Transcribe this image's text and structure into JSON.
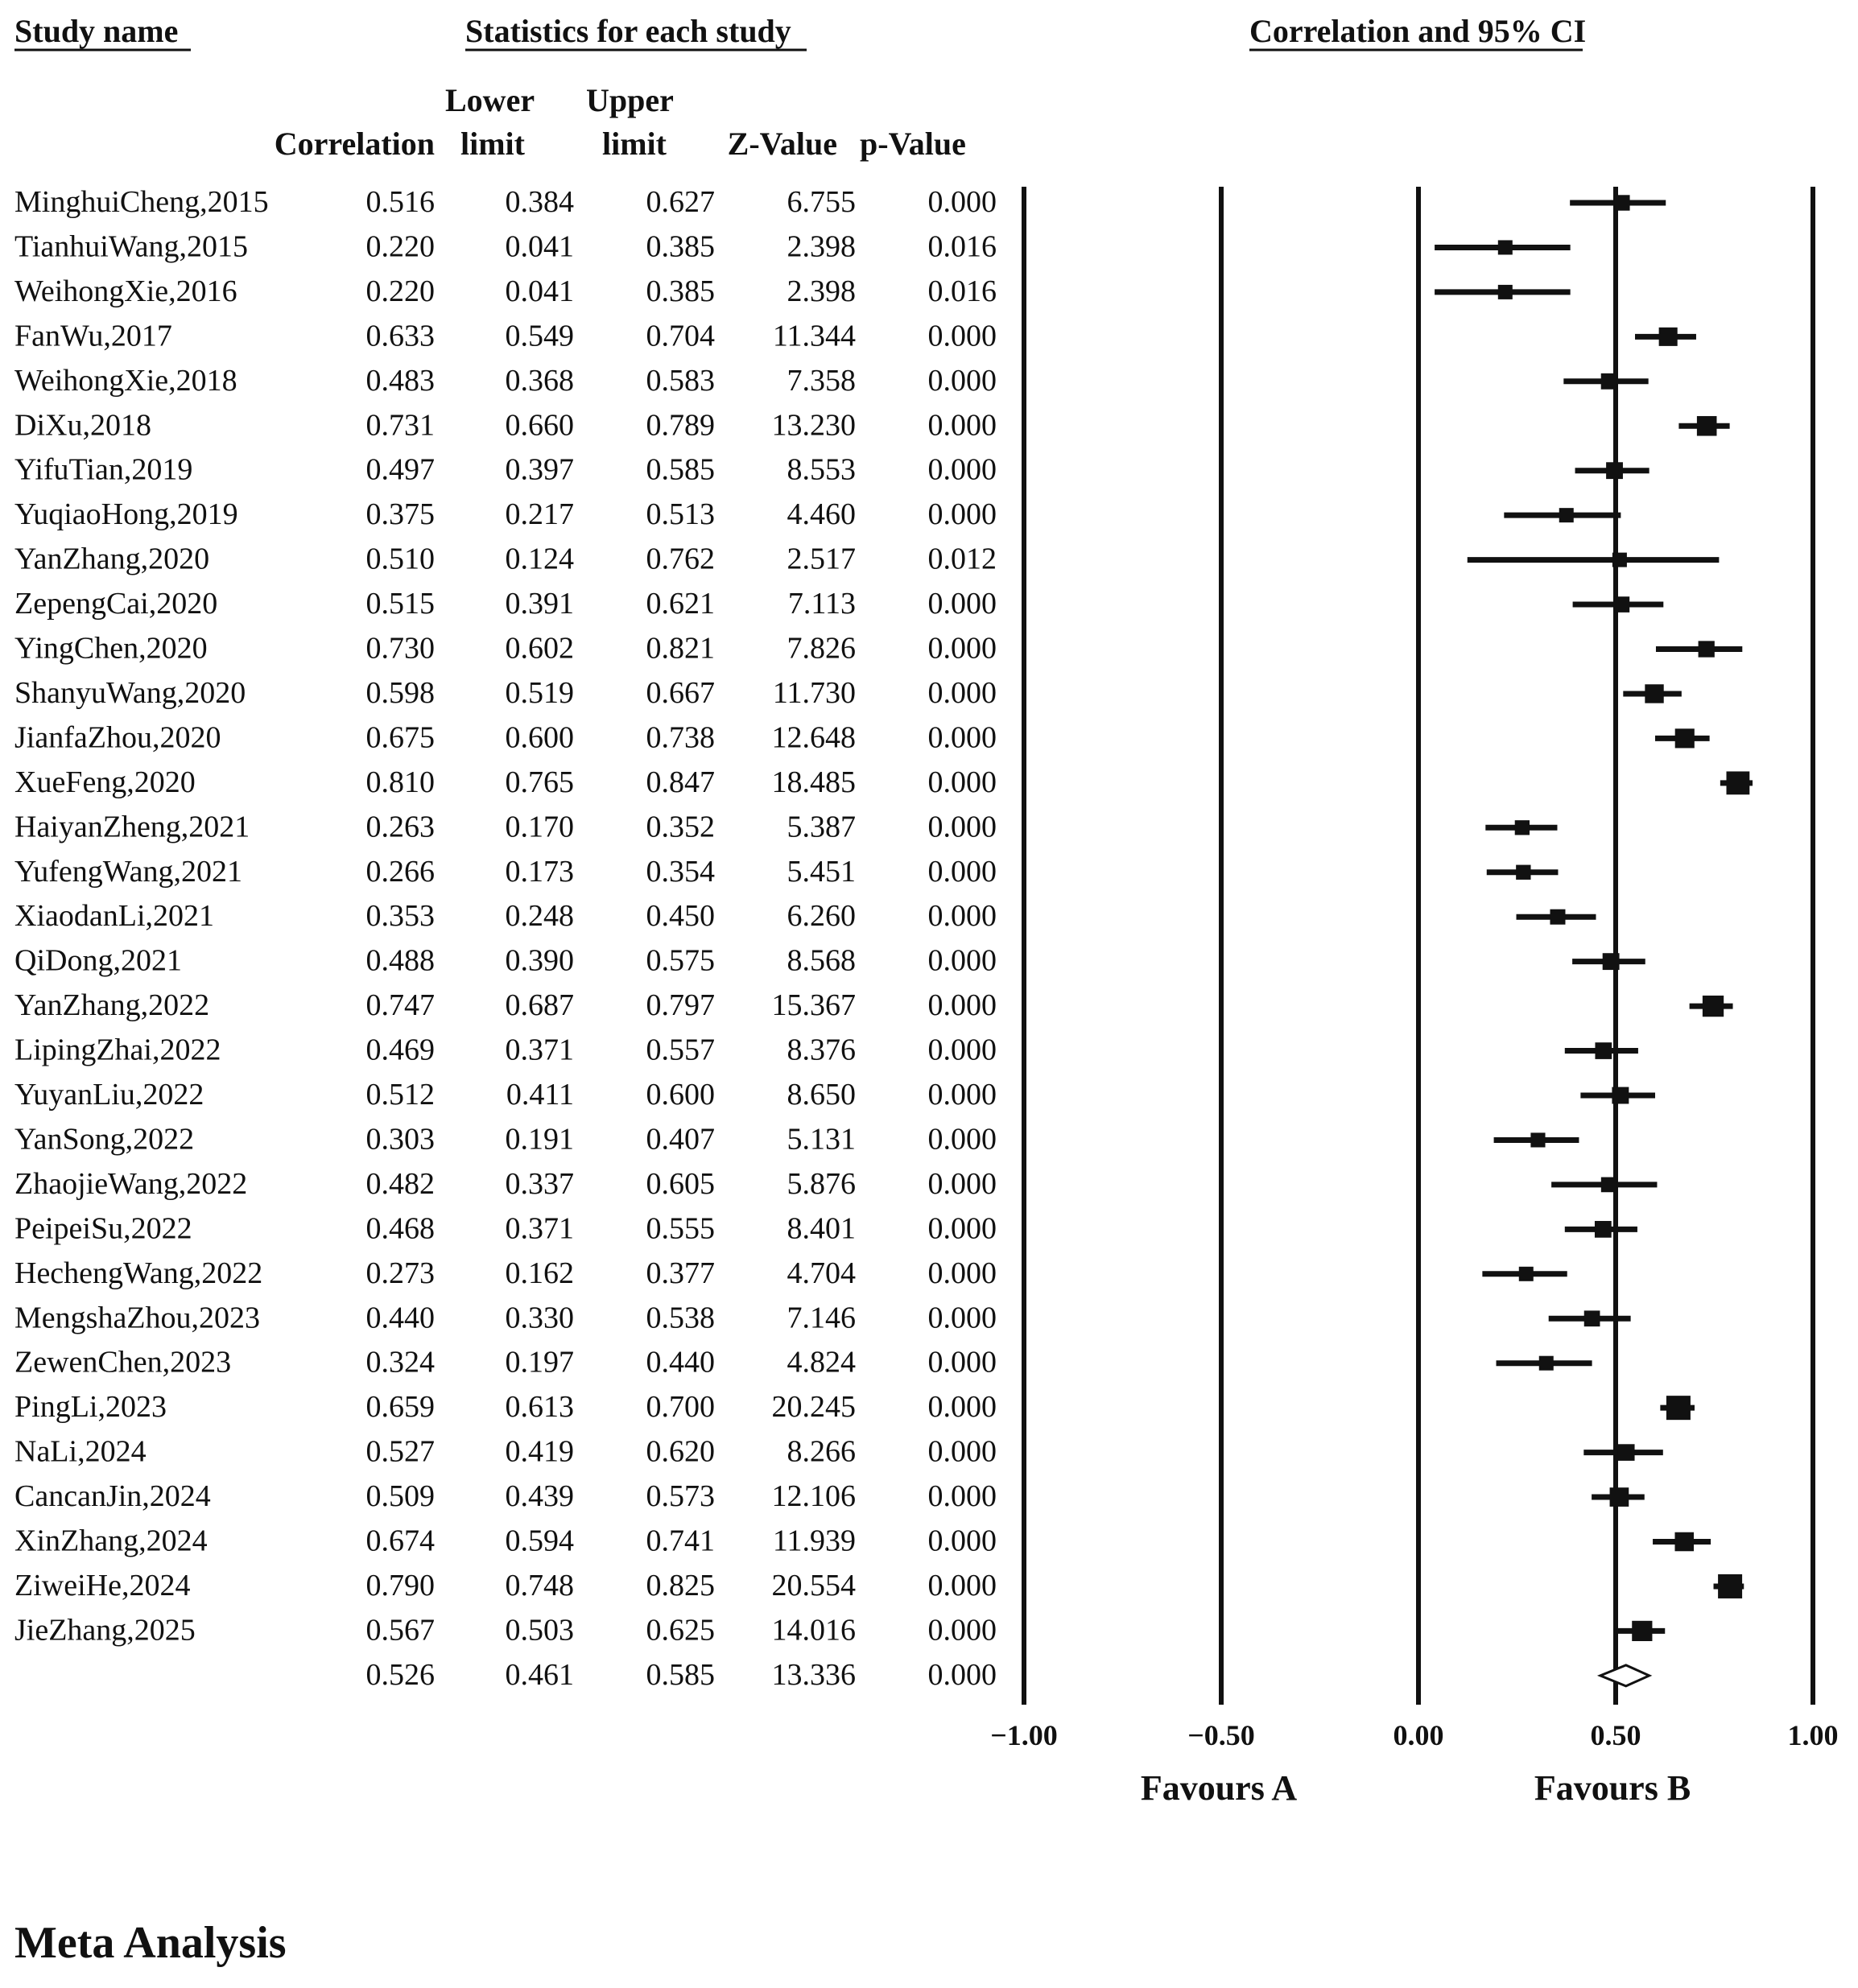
{
  "headers": {
    "study_name": "Study name",
    "statistics": "Statistics for each study",
    "ci": "Correlation and 95% CI",
    "correlation": "Correlation",
    "lower_1": "Lower",
    "lower_2": "limit",
    "upper_1": "Upper",
    "upper_2": "limit",
    "z": "Z-Value",
    "p": "p-Value"
  },
  "footer_title": "Meta Analysis",
  "chart_data": {
    "type": "forest",
    "xlim": [
      -1.0,
      1.0
    ],
    "x_ticks": [
      "-1.00",
      "-0.50",
      "0.00",
      "0.50",
      "1.00"
    ],
    "x_tick_values": [
      -1.0,
      -0.5,
      0.0,
      0.5,
      1.0
    ],
    "favours_left": "Favours A",
    "favours_right": "Favours B",
    "studies": [
      {
        "name": "MinghuiCheng,2015",
        "r": "0.516",
        "lower": "0.384",
        "upper": "0.627",
        "z": "6.755",
        "p": "0.000"
      },
      {
        "name": "TianhuiWang,2015",
        "r": "0.220",
        "lower": "0.041",
        "upper": "0.385",
        "z": "2.398",
        "p": "0.016"
      },
      {
        "name": "WeihongXie,2016",
        "r": "0.220",
        "lower": "0.041",
        "upper": "0.385",
        "z": "2.398",
        "p": "0.016"
      },
      {
        "name": "FanWu,2017",
        "r": "0.633",
        "lower": "0.549",
        "upper": "0.704",
        "z": "11.344",
        "p": "0.000"
      },
      {
        "name": "WeihongXie,2018",
        "r": "0.483",
        "lower": "0.368",
        "upper": "0.583",
        "z": "7.358",
        "p": "0.000"
      },
      {
        "name": "DiXu,2018",
        "r": "0.731",
        "lower": "0.660",
        "upper": "0.789",
        "z": "13.230",
        "p": "0.000"
      },
      {
        "name": "YifuTian,2019",
        "r": "0.497",
        "lower": "0.397",
        "upper": "0.585",
        "z": "8.553",
        "p": "0.000"
      },
      {
        "name": "YuqiaoHong,2019",
        "r": "0.375",
        "lower": "0.217",
        "upper": "0.513",
        "z": "4.460",
        "p": "0.000"
      },
      {
        "name": "YanZhang,2020",
        "r": "0.510",
        "lower": "0.124",
        "upper": "0.762",
        "z": "2.517",
        "p": "0.012"
      },
      {
        "name": "ZepengCai,2020",
        "r": "0.515",
        "lower": "0.391",
        "upper": "0.621",
        "z": "7.113",
        "p": "0.000"
      },
      {
        "name": "YingChen,2020",
        "r": "0.730",
        "lower": "0.602",
        "upper": "0.821",
        "z": "7.826",
        "p": "0.000"
      },
      {
        "name": "ShanyuWang,2020",
        "r": "0.598",
        "lower": "0.519",
        "upper": "0.667",
        "z": "11.730",
        "p": "0.000"
      },
      {
        "name": "JianfaZhou,2020",
        "r": "0.675",
        "lower": "0.600",
        "upper": "0.738",
        "z": "12.648",
        "p": "0.000"
      },
      {
        "name": "XueFeng,2020",
        "r": "0.810",
        "lower": "0.765",
        "upper": "0.847",
        "z": "18.485",
        "p": "0.000"
      },
      {
        "name": "HaiyanZheng,2021",
        "r": "0.263",
        "lower": "0.170",
        "upper": "0.352",
        "z": "5.387",
        "p": "0.000"
      },
      {
        "name": "YufengWang,2021",
        "r": "0.266",
        "lower": "0.173",
        "upper": "0.354",
        "z": "5.451",
        "p": "0.000"
      },
      {
        "name": "XiaodanLi,2021",
        "r": "0.353",
        "lower": "0.248",
        "upper": "0.450",
        "z": "6.260",
        "p": "0.000"
      },
      {
        "name": "QiDong,2021",
        "r": "0.488",
        "lower": "0.390",
        "upper": "0.575",
        "z": "8.568",
        "p": "0.000"
      },
      {
        "name": "YanZhang,2022",
        "r": "0.747",
        "lower": "0.687",
        "upper": "0.797",
        "z": "15.367",
        "p": "0.000"
      },
      {
        "name": "LipingZhai,2022",
        "r": "0.469",
        "lower": "0.371",
        "upper": "0.557",
        "z": "8.376",
        "p": "0.000"
      },
      {
        "name": "YuyanLiu,2022",
        "r": "0.512",
        "lower": "0.411",
        "upper": "0.600",
        "z": "8.650",
        "p": "0.000"
      },
      {
        "name": "YanSong,2022",
        "r": "0.303",
        "lower": "0.191",
        "upper": "0.407",
        "z": "5.131",
        "p": "0.000"
      },
      {
        "name": "ZhaojieWang,2022",
        "r": "0.482",
        "lower": "0.337",
        "upper": "0.605",
        "z": "5.876",
        "p": "0.000"
      },
      {
        "name": "PeipeiSu,2022",
        "r": "0.468",
        "lower": "0.371",
        "upper": "0.555",
        "z": "8.401",
        "p": "0.000"
      },
      {
        "name": "HechengWang,2022",
        "r": "0.273",
        "lower": "0.162",
        "upper": "0.377",
        "z": "4.704",
        "p": "0.000"
      },
      {
        "name": "MengshaZhou,2023",
        "r": "0.440",
        "lower": "0.330",
        "upper": "0.538",
        "z": "7.146",
        "p": "0.000"
      },
      {
        "name": "ZewenChen,2023",
        "r": "0.324",
        "lower": "0.197",
        "upper": "0.440",
        "z": "4.824",
        "p": "0.000"
      },
      {
        "name": "PingLi,2023",
        "r": "0.659",
        "lower": "0.613",
        "upper": "0.700",
        "z": "20.245",
        "p": "0.000"
      },
      {
        "name": "NaLi,2024",
        "r": "0.527",
        "lower": "0.419",
        "upper": "0.620",
        "z": "8.266",
        "p": "0.000"
      },
      {
        "name": "CancanJin,2024",
        "r": "0.509",
        "lower": "0.439",
        "upper": "0.573",
        "z": "12.106",
        "p": "0.000"
      },
      {
        "name": "XinZhang,2024",
        "r": "0.674",
        "lower": "0.594",
        "upper": "0.741",
        "z": "11.939",
        "p": "0.000"
      },
      {
        "name": "ZiweiHe,2024",
        "r": "0.790",
        "lower": "0.748",
        "upper": "0.825",
        "z": "20.554",
        "p": "0.000"
      },
      {
        "name": "JieZhang,2025",
        "r": "0.567",
        "lower": "0.503",
        "upper": "0.625",
        "z": "14.016",
        "p": "0.000"
      }
    ],
    "summary": {
      "name": "",
      "r": "0.526",
      "lower": "0.461",
      "upper": "0.585",
      "z": "13.336",
      "p": "0.000"
    }
  }
}
